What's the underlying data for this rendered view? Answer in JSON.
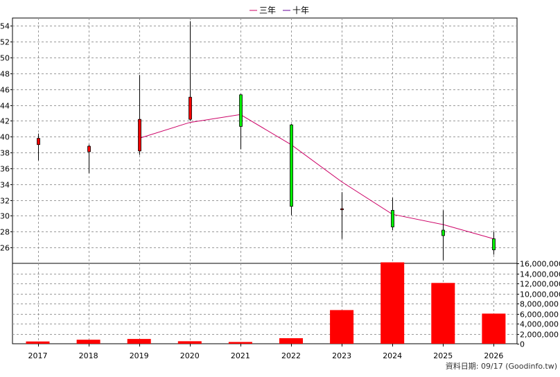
{
  "legend": {
    "items": [
      {
        "label": "三年",
        "color": "#cc0066"
      },
      {
        "label": "十年",
        "color": "#660099"
      }
    ]
  },
  "footer": {
    "source": "資料日期: 09/17 (Goodinfo.tw)"
  },
  "chart_data": [
    {
      "type": "candlestick",
      "title": "",
      "categories": [
        "2017",
        "2018",
        "2019",
        "2020",
        "2021",
        "2022",
        "2023",
        "2024",
        "2025",
        "2026"
      ],
      "ohlc": [
        {
          "open": 39.0,
          "high": 40.4,
          "low": 37.0,
          "close": 39.8
        },
        {
          "open": 38.1,
          "high": 39.0,
          "low": 35.4,
          "close": 38.8
        },
        {
          "open": 38.2,
          "high": 47.8,
          "low": 37.7,
          "close": 42.2
        },
        {
          "open": 42.2,
          "high": 54.6,
          "low": 42.0,
          "close": 45.0
        },
        {
          "open": 45.3,
          "high": 45.4,
          "low": 38.4,
          "close": 41.3
        },
        {
          "open": 41.5,
          "high": 41.6,
          "low": 30.1,
          "close": 31.2
        },
        {
          "open": 30.9,
          "high": 33.0,
          "low": 27.1,
          "close": 30.9
        },
        {
          "open": 30.7,
          "high": 32.3,
          "low": 28.2,
          "close": 28.6
        },
        {
          "open": 28.2,
          "high": 30.7,
          "low": 24.4,
          "close": 27.5
        },
        {
          "open": 27.1,
          "high": 28.0,
          "low": 25.1,
          "close": 25.7
        }
      ],
      "up_color": "#ff0000",
      "down_color": "#00ee00",
      "series": [
        {
          "name": "三年",
          "color": "#cc0066",
          "x": [
            "2019",
            "2020",
            "2021",
            "2022",
            "2023",
            "2024",
            "2025",
            "2026"
          ],
          "values": [
            39.8,
            41.8,
            42.8,
            39.0,
            34.3,
            30.2,
            28.9,
            27.1
          ]
        }
      ],
      "ylim": [
        24,
        55
      ],
      "yticks": [
        26,
        28,
        30,
        32,
        34,
        36,
        38,
        40,
        42,
        44,
        46,
        48,
        50,
        52,
        54
      ],
      "grid": true,
      "legend_position": "top-center"
    },
    {
      "type": "bar",
      "title": "",
      "categories": [
        "2017",
        "2018",
        "2019",
        "2020",
        "2021",
        "2022",
        "2023",
        "2024",
        "2025",
        "2026"
      ],
      "values": [
        450000,
        800000,
        950000,
        500000,
        350000,
        1100000,
        6700000,
        16200000,
        12100000,
        6000000
      ],
      "bar_color": "#ff0000",
      "ylim": [
        0,
        16000000
      ],
      "yticks": [
        "0",
        "2,000,000",
        "4,000,000",
        "6,000,000",
        "8,000,000",
        "10,000,000",
        "12,000,000",
        "14,000,000",
        "16,000,000"
      ],
      "ytick_values": [
        0,
        2000000,
        4000000,
        6000000,
        8000000,
        10000000,
        12000000,
        14000000,
        16000000
      ],
      "grid": true
    }
  ]
}
